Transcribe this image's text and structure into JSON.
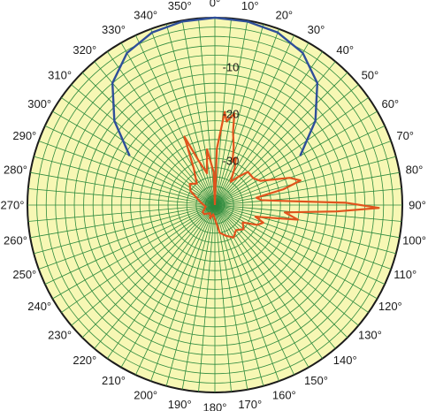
{
  "chart_data": {
    "type": "polar-line",
    "angular_ticks": [
      "0°",
      "10°",
      "20°",
      "30°",
      "40°",
      "50°",
      "60°",
      "70°",
      "80°",
      "90°",
      "100°",
      "110°",
      "120°",
      "130°",
      "140°",
      "150°",
      "160°",
      "170°",
      "180°",
      "190°",
      "200°",
      "210°",
      "220°",
      "230°",
      "240°",
      "250°",
      "260°",
      "270°",
      "280°",
      "290°",
      "300°",
      "310°",
      "320°",
      "330°",
      "340°",
      "350°"
    ],
    "radial_ticks": [
      "-10",
      "-20",
      "-30"
    ],
    "radial_range_db": [
      -40,
      0
    ],
    "angle_direction": "clockwise",
    "zero_angle_position": "top",
    "grid": true,
    "colors": {
      "face": "#f7f7b4",
      "grid": "#2e8a3e",
      "series_blue": "#2f4f9a",
      "series_orange": "#e0531c"
    },
    "series": [
      {
        "color": "#2f4f9a",
        "points": [
          [
            -60,
            -19
          ],
          [
            -50,
            -12
          ],
          [
            -40,
            -6
          ],
          [
            -30,
            -2.5
          ],
          [
            -20,
            -0.8
          ],
          [
            -10,
            -0.2
          ],
          [
            0,
            0
          ],
          [
            10,
            -0.2
          ],
          [
            20,
            -0.8
          ],
          [
            30,
            -2.5
          ],
          [
            40,
            -6
          ],
          [
            50,
            -12
          ],
          [
            60,
            -19
          ]
        ]
      },
      {
        "color": "#e0531c",
        "points": [
          [
            0,
            -40
          ],
          [
            2,
            -28
          ],
          [
            6,
            -20
          ],
          [
            8,
            -22
          ],
          [
            12,
            -20
          ],
          [
            14,
            -24
          ],
          [
            18,
            -27
          ],
          [
            22,
            -30
          ],
          [
            24,
            -29
          ],
          [
            28,
            -31
          ],
          [
            34,
            -34
          ],
          [
            40,
            -32
          ],
          [
            45,
            -30
          ],
          [
            55,
            -30
          ],
          [
            62,
            -29
          ],
          [
            70,
            -23
          ],
          [
            74,
            -21
          ],
          [
            77,
            -25
          ],
          [
            80,
            -31
          ],
          [
            84,
            -30
          ],
          [
            87,
            -24
          ],
          [
            89,
            -12
          ],
          [
            91,
            -5
          ],
          [
            93,
            -14
          ],
          [
            96,
            -25
          ],
          [
            100,
            -22
          ],
          [
            103,
            -28
          ],
          [
            106,
            -31
          ],
          [
            110,
            -29
          ],
          [
            115,
            -30
          ],
          [
            122,
            -33
          ],
          [
            130,
            -32
          ],
          [
            140,
            -33
          ],
          [
            150,
            -32
          ],
          [
            160,
            -33
          ],
          [
            170,
            -34
          ],
          [
            180,
            -37
          ],
          [
            190,
            -38
          ],
          [
            200,
            -37
          ],
          [
            210,
            -38
          ],
          [
            230,
            -37
          ],
          [
            240,
            -37
          ],
          [
            260,
            -38
          ],
          [
            280,
            -37
          ],
          [
            300,
            -34
          ],
          [
            310,
            -33
          ],
          [
            320,
            -34
          ],
          [
            330,
            -31
          ],
          [
            336,
            -24
          ],
          [
            340,
            -30
          ],
          [
            346,
            -33
          ],
          [
            352,
            -28
          ],
          [
            358,
            -33
          ],
          [
            360,
            -40
          ]
        ]
      }
    ]
  }
}
